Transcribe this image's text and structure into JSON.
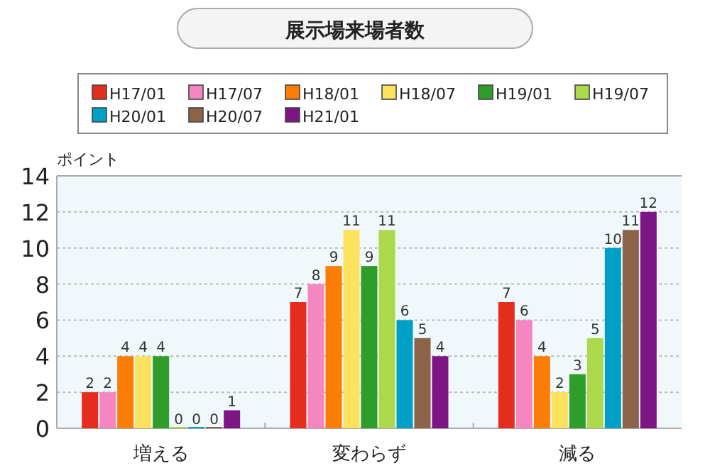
{
  "chart_data": {
    "type": "bar",
    "title": "展示場来場者数",
    "ylabel": "ポイント",
    "categories": [
      "増える",
      "変わらず",
      "減る"
    ],
    "series": [
      {
        "name": "H17/01",
        "color": "#e52d1e",
        "values": [
          2,
          7,
          7
        ]
      },
      {
        "name": "H17/07",
        "color": "#f586c0",
        "values": [
          2,
          8,
          6
        ]
      },
      {
        "name": "H18/01",
        "color": "#fb7d05",
        "values": [
          4,
          9,
          4
        ]
      },
      {
        "name": "H18/07",
        "color": "#fde25e",
        "values": [
          4,
          11,
          2
        ]
      },
      {
        "name": "H19/01",
        "color": "#2f9d2a",
        "values": [
          4,
          9,
          3
        ]
      },
      {
        "name": "H19/07",
        "color": "#acd94b",
        "values": [
          0,
          11,
          5
        ]
      },
      {
        "name": "H20/01",
        "color": "#00a0c6",
        "values": [
          0,
          6,
          10
        ]
      },
      {
        "name": "H20/07",
        "color": "#8b6347",
        "values": [
          0,
          5,
          11
        ]
      },
      {
        "name": "H21/01",
        "color": "#7d1584",
        "values": [
          1,
          4,
          12
        ]
      }
    ],
    "ylim": [
      0,
      14
    ],
    "yticks": [
      0,
      2,
      4,
      6,
      8,
      10,
      12,
      14
    ],
    "grid": "y",
    "legend": "top",
    "data_labels": true
  }
}
